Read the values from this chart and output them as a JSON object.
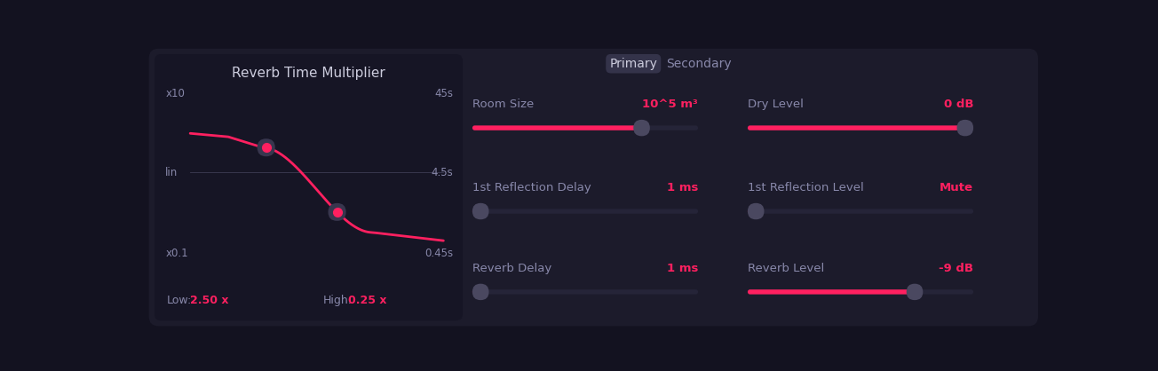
{
  "bg_color": "#131220",
  "panel_color": "#1c1b2b",
  "graph_bg": "#161525",
  "pink": "#ff2060",
  "text_light": "#8888aa",
  "text_white": "#ccccdd",
  "title": "Reverb Time Multiplier",
  "tab_primary": "Primary",
  "tab_secondary": "Secondary",
  "tab_bg": "#34334a",
  "label_x10": "x10",
  "label_x01": "x0.1",
  "label_lin": "lin",
  "label_45s": "45s",
  "label_45s2": "4.5s",
  "label_045s": "0.45s",
  "low_label": "Low:",
  "low_val": "2.50 x",
  "high_label": "High:",
  "high_val": "0.25 x",
  "slider_track_color": "#252438",
  "slider_handle_color": "#4a4860",
  "params": [
    {
      "label": "Room Size",
      "value": "10^5 m³",
      "slider_fill": 0.75,
      "row": 0,
      "col": 0
    },
    {
      "label": "Dry Level",
      "value": "0 dB",
      "slider_fill": 0.99,
      "row": 0,
      "col": 1
    },
    {
      "label": "1st Reflection Delay",
      "value": "1 ms",
      "slider_fill": 0.03,
      "row": 1,
      "col": 0
    },
    {
      "label": "1st Reflection Level",
      "value": "Mute",
      "slider_fill": 0.03,
      "row": 1,
      "col": 1
    },
    {
      "label": "Reverb Delay",
      "value": "1 ms",
      "slider_fill": 0.03,
      "row": 2,
      "col": 0
    },
    {
      "label": "Reverb Level",
      "value": "-9 dB",
      "slider_fill": 0.74,
      "row": 2,
      "col": 1
    }
  ],
  "cp1x": 0.3,
  "cp1y": 0.42,
  "cp2x": 0.58,
  "cp2y": 0.61
}
